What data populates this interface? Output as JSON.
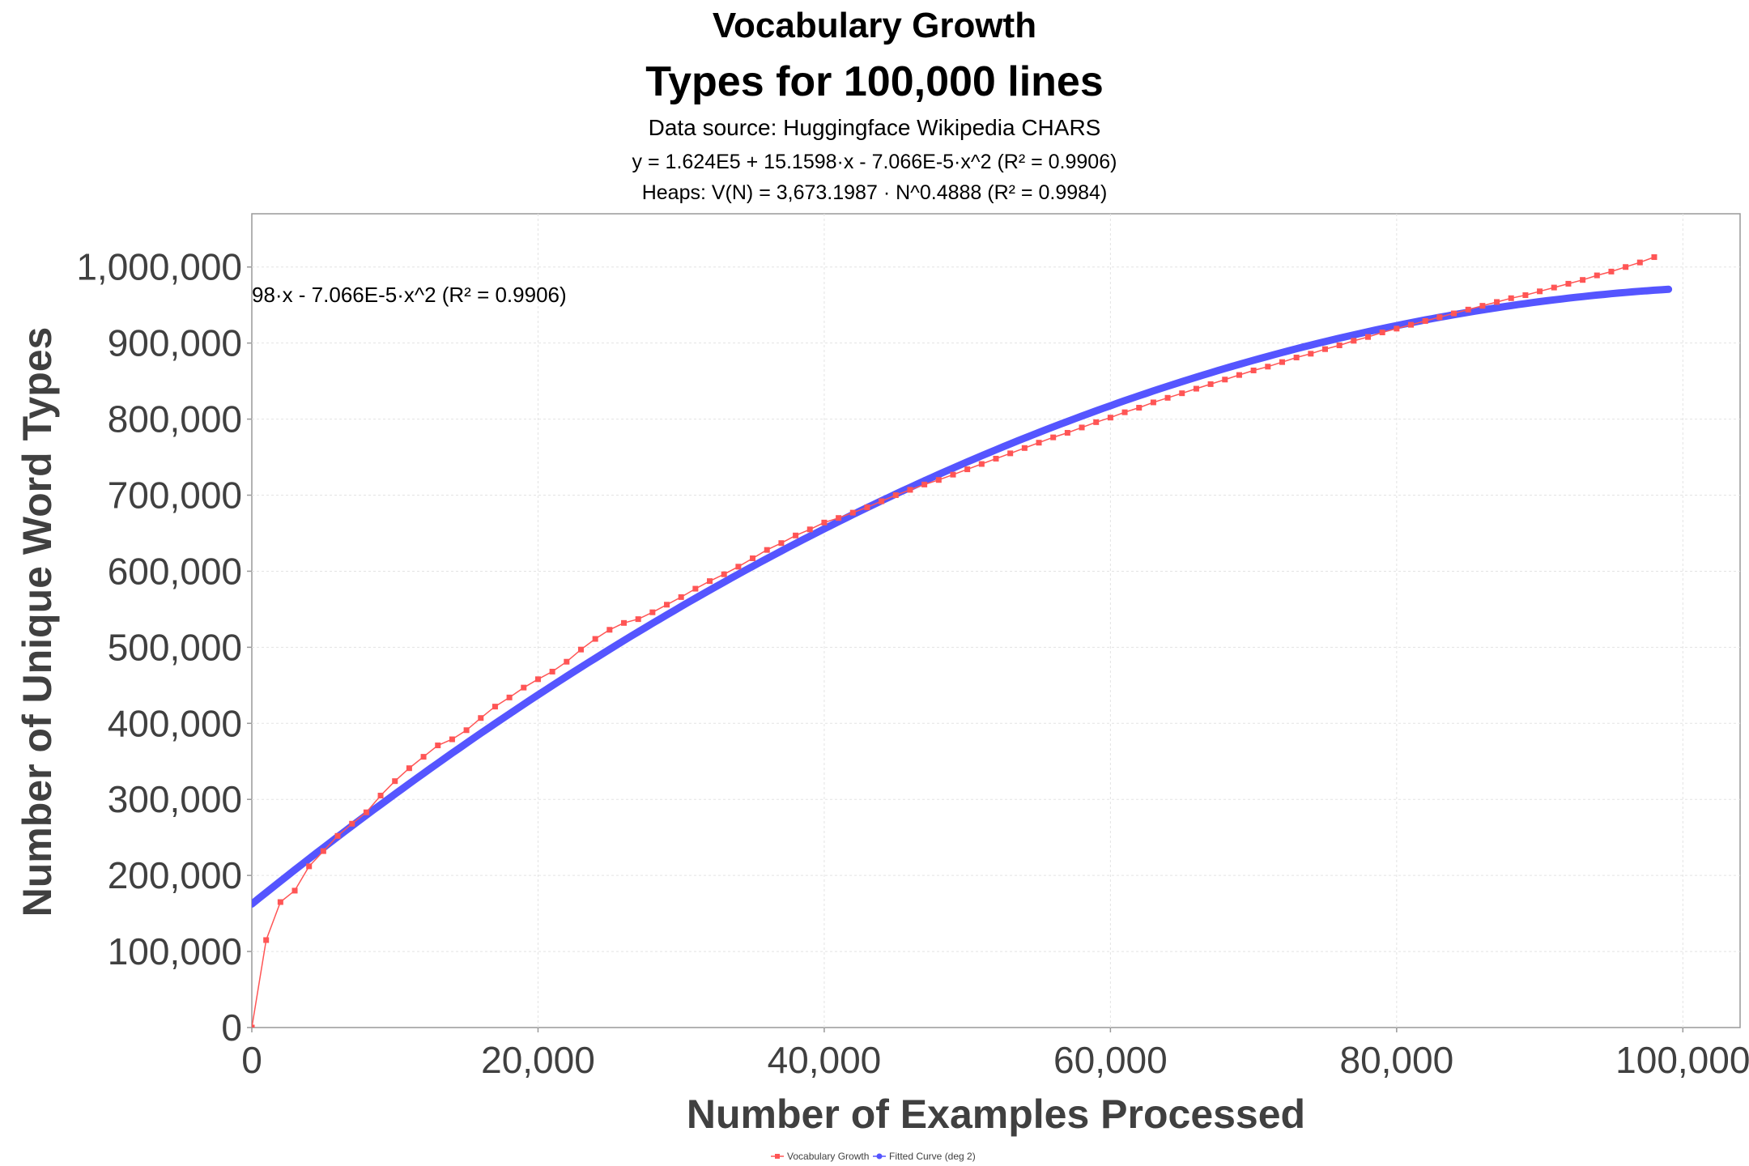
{
  "chart_data": {
    "type": "line",
    "title": "Vocabulary Growth",
    "subtitle": "Types for 100,000 lines",
    "source": "Data source: Huggingface Wikipedia CHARS",
    "fit_equation": "y = 1.624E5 + 15.1598·x - 7.066E-5·x^2    (R² = 0.9906)",
    "heaps_equation": "Heaps: V(N) = 3,673.1987 · N^0.4888    (R² = 0.9984)",
    "annotation": "98·x - 7.066E-5·x^2    (R² = 0.9906)",
    "xlabel": "Number of Examples Processed",
    "ylabel": "Number of Unique Word Types",
    "xlim": [
      0,
      104000
    ],
    "ylim": [
      0,
      1070000
    ],
    "x_ticks": [
      {
        "value": 0,
        "label": "0"
      },
      {
        "value": 20000,
        "label": "20,000"
      },
      {
        "value": 40000,
        "label": "40,000"
      },
      {
        "value": 60000,
        "label": "60,000"
      },
      {
        "value": 80000,
        "label": "80,000"
      },
      {
        "value": 100000,
        "label": "100,000"
      }
    ],
    "y_ticks": [
      {
        "value": 0,
        "label": "0"
      },
      {
        "value": 100000,
        "label": "100,000"
      },
      {
        "value": 200000,
        "label": "200,000"
      },
      {
        "value": 300000,
        "label": "300,000"
      },
      {
        "value": 400000,
        "label": "400,000"
      },
      {
        "value": 500000,
        "label": "500,000"
      },
      {
        "value": 600000,
        "label": "600,000"
      },
      {
        "value": 700000,
        "label": "700,000"
      },
      {
        "value": 800000,
        "label": "800,000"
      },
      {
        "value": 900000,
        "label": "900,000"
      },
      {
        "value": 1000000,
        "label": "1,000,000"
      }
    ],
    "grid": true,
    "legend_position": "bottom-center",
    "series": [
      {
        "name": "Vocabulary Growth",
        "color": "#ff5555",
        "marker": "square",
        "x_start": 0,
        "x_step": 1000,
        "values": [
          0,
          115000,
          165000,
          180000,
          212000,
          232000,
          252000,
          268000,
          283000,
          305000,
          324000,
          341000,
          356000,
          371000,
          379000,
          391000,
          407000,
          422000,
          434000,
          447000,
          458000,
          468000,
          481000,
          497000,
          511000,
          523000,
          532000,
          537000,
          546000,
          556000,
          566000,
          577000,
          587000,
          596000,
          606000,
          617000,
          628000,
          637000,
          647000,
          655000,
          664000,
          670000,
          677000,
          684000,
          692000,
          700000,
          707000,
          714000,
          720000,
          727000,
          734000,
          741000,
          748000,
          755000,
          762000,
          769000,
          776000,
          782000,
          789000,
          796000,
          802000,
          809000,
          815000,
          822000,
          828000,
          834000,
          840000,
          846000,
          852000,
          858000,
          864000,
          869000,
          875000,
          881000,
          886000,
          892000,
          897000,
          903000,
          908000,
          914000,
          919000,
          924000,
          929000,
          934000,
          939000,
          944000,
          949000,
          954000,
          959000,
          963000,
          968000,
          973000,
          978000,
          983000,
          989000,
          994000,
          1000000,
          1006000,
          1013000
        ]
      },
      {
        "name": "Fitted Curve (deg 2)",
        "color": "#5555ff",
        "marker": "circle",
        "coefficients": [
          162400,
          15.1598,
          -7.066e-05
        ],
        "x_range": [
          0,
          99000
        ]
      }
    ]
  }
}
